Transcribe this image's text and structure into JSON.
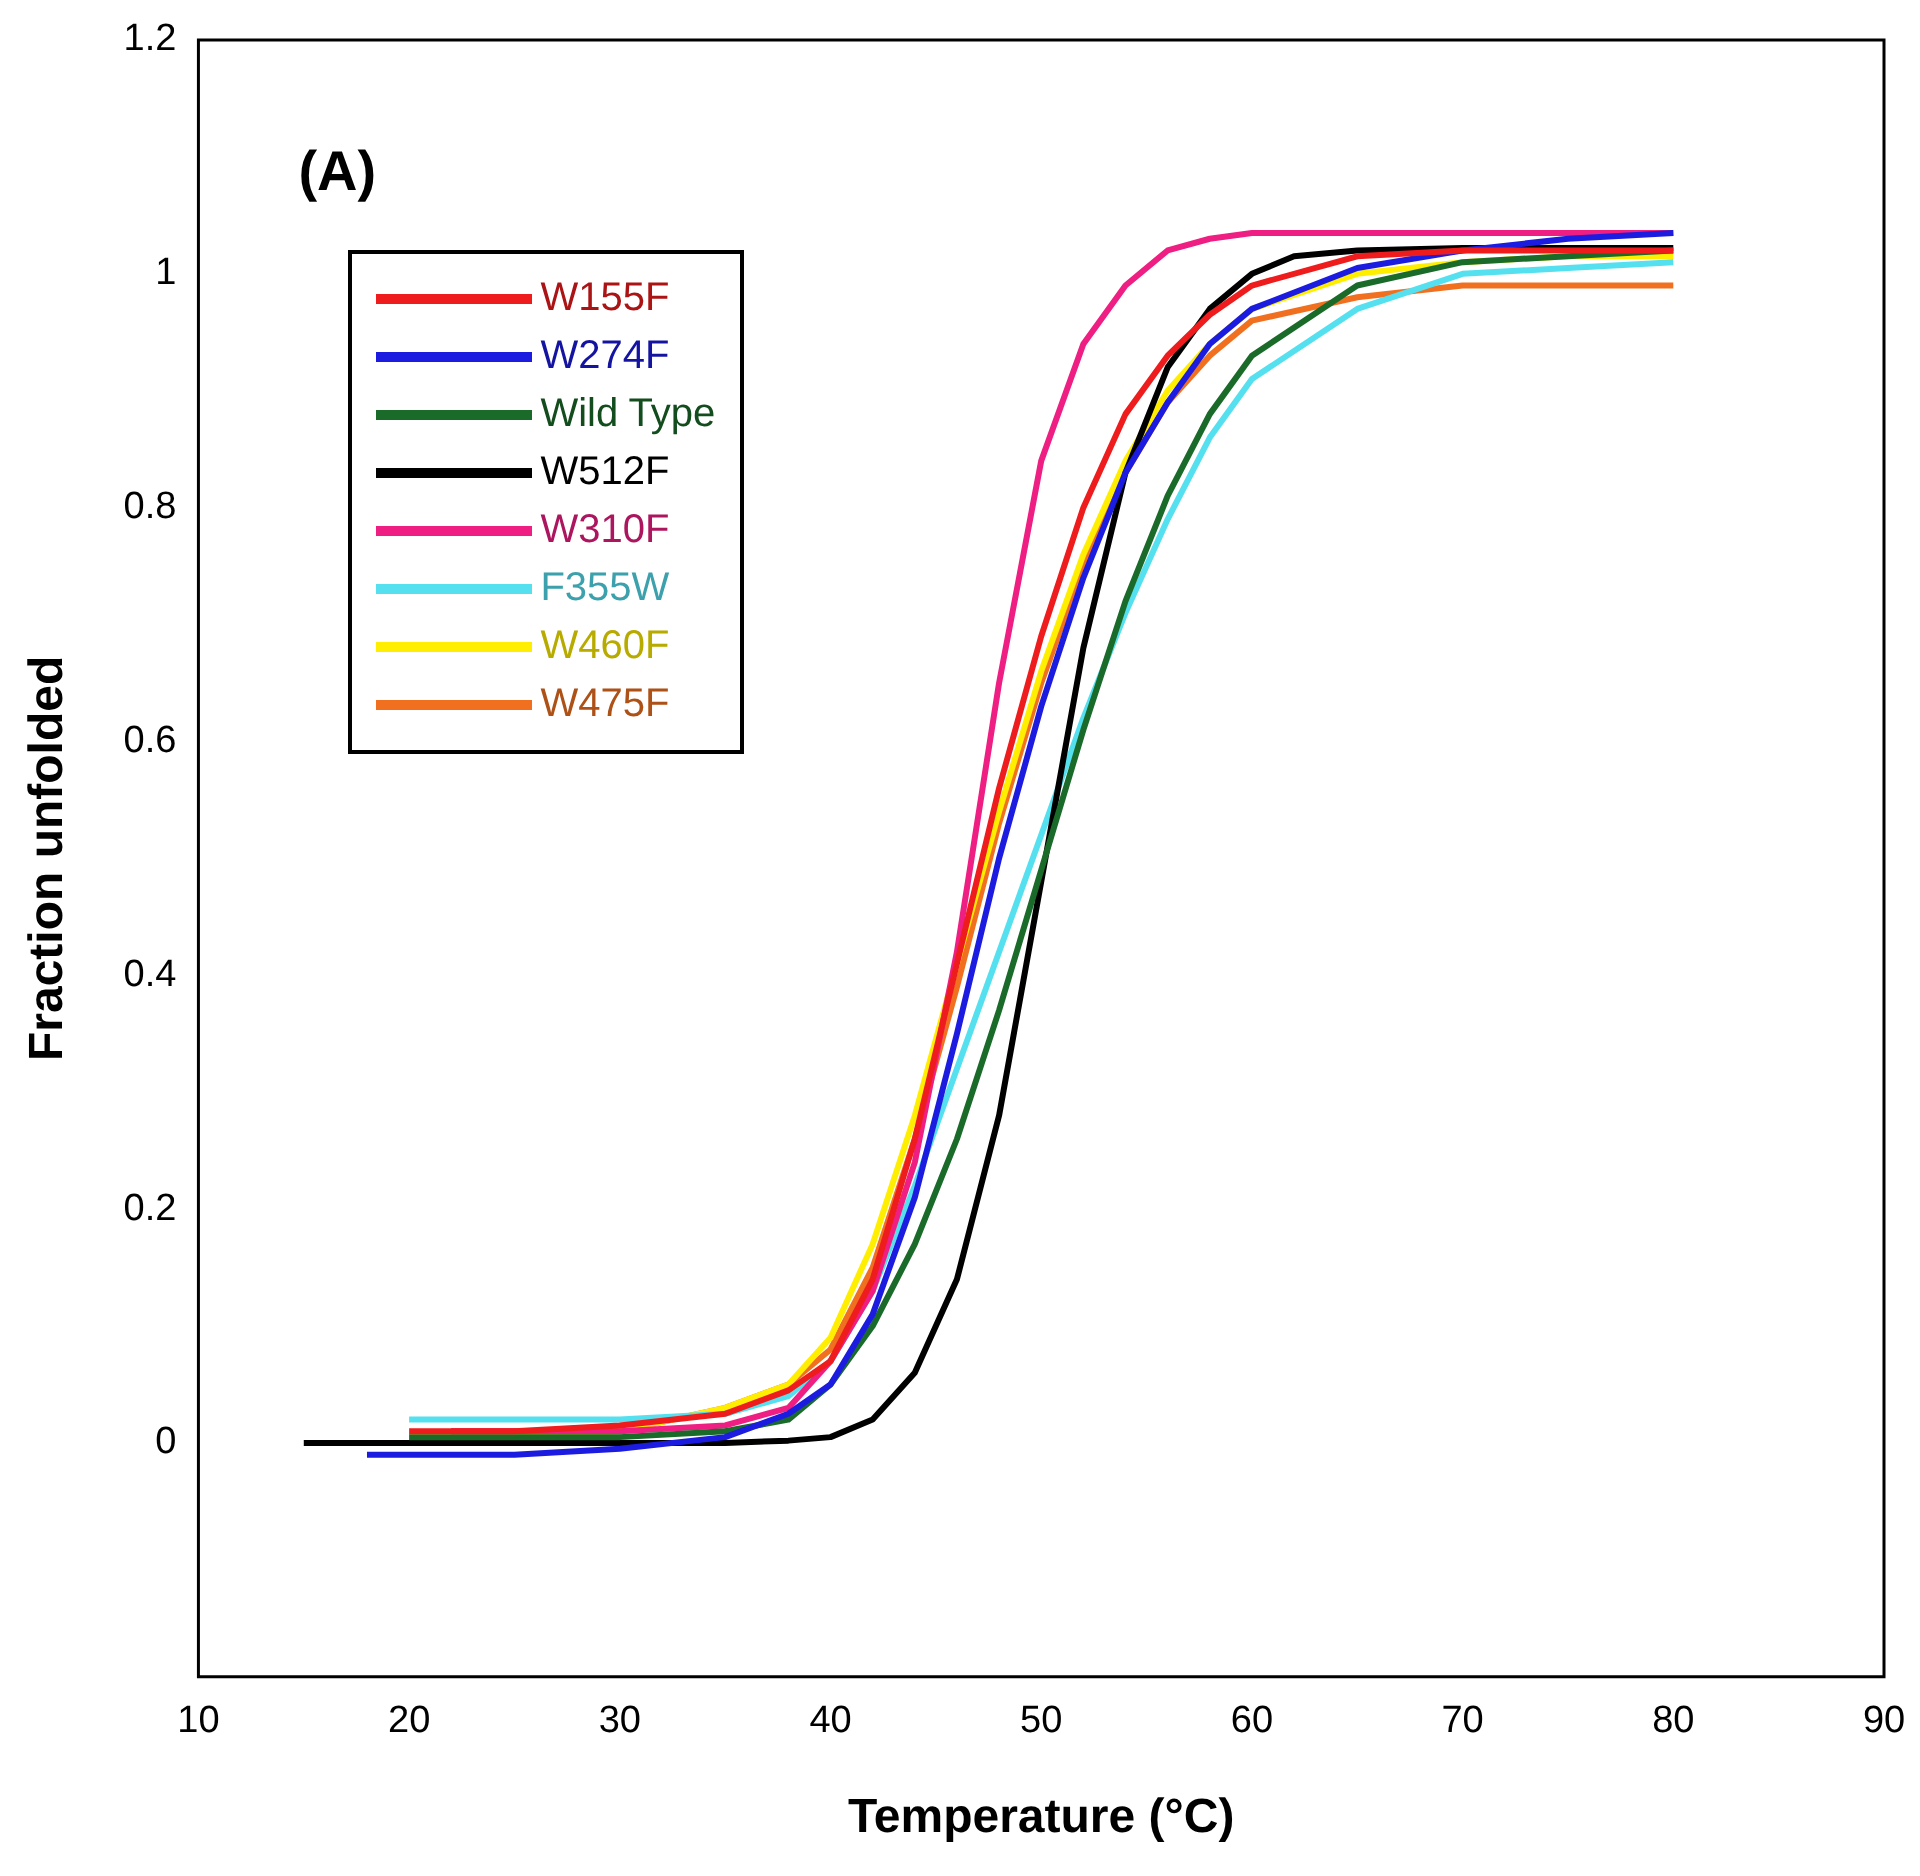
{
  "chart_data": {
    "type": "line",
    "xlabel": "Temperature (°C)",
    "ylabel": "Fraction unfolded",
    "annotations": [
      "(A)"
    ],
    "x": [
      20,
      25,
      30,
      35,
      38,
      40,
      42,
      44,
      46,
      48,
      50,
      52,
      54,
      56,
      58,
      60,
      65,
      70,
      75,
      80
    ],
    "xlim": [
      10,
      90
    ],
    "xticks": [
      10,
      20,
      30,
      40,
      50,
      60,
      70,
      80,
      90
    ],
    "ylim": [
      -0.2,
      1.2
    ],
    "yticks": [
      0,
      0.2,
      0.4,
      0.6,
      0.8,
      1,
      1.2
    ],
    "grid": false,
    "legend": "top left",
    "marker": "none",
    "line_style": "solid",
    "series": [
      {
        "name": "W155F",
        "color": "#ee1c1c",
        "values": [
          0.01,
          0.01,
          0.015,
          0.025,
          0.045,
          0.07,
          0.14,
          0.26,
          0.41,
          0.56,
          0.69,
          0.8,
          0.88,
          0.93,
          0.965,
          0.99,
          1.015,
          1.02,
          1.02,
          1.02
        ]
      },
      {
        "name": "W274F",
        "color": "#1c1ce0",
        "x": [
          18,
          20,
          25,
          30,
          35,
          38,
          40,
          42,
          44,
          46,
          48,
          50,
          52,
          54,
          56,
          58,
          60,
          65,
          70,
          75,
          80
        ],
        "values": [
          -0.01,
          -0.01,
          -0.01,
          -0.005,
          0.005,
          0.025,
          0.05,
          0.11,
          0.21,
          0.35,
          0.5,
          0.63,
          0.74,
          0.83,
          0.89,
          0.94,
          0.97,
          1.005,
          1.02,
          1.03,
          1.035
        ]
      },
      {
        "name": "Wild Type",
        "color": "#1a6b2a",
        "values": [
          0.005,
          0.005,
          0.005,
          0.01,
          0.02,
          0.05,
          0.1,
          0.17,
          0.26,
          0.37,
          0.49,
          0.61,
          0.72,
          0.81,
          0.88,
          0.93,
          0.99,
          1.01,
          1.015,
          1.02
        ]
      },
      {
        "name": "W512F",
        "color": "#000000",
        "x": [
          15,
          20,
          25,
          30,
          35,
          38,
          40,
          42,
          44,
          46,
          48,
          50,
          52,
          54,
          56,
          58,
          60,
          62,
          65,
          70,
          75,
          80
        ],
        "values": [
          0,
          0,
          0,
          0,
          0,
          0.002,
          0.005,
          0.02,
          0.06,
          0.14,
          0.28,
          0.48,
          0.68,
          0.83,
          0.92,
          0.97,
          1,
          1.015,
          1.02,
          1.022,
          1.022,
          1.022
        ]
      },
      {
        "name": "W310F",
        "color": "#ee1e82",
        "x": [
          22,
          25,
          30,
          35,
          38,
          40,
          42,
          44,
          46,
          48,
          50,
          52,
          54,
          56,
          58,
          60,
          65,
          70,
          75,
          80
        ],
        "values": [
          0.01,
          0.01,
          0.01,
          0.015,
          0.03,
          0.07,
          0.13,
          0.24,
          0.42,
          0.65,
          0.84,
          0.94,
          0.99,
          1.02,
          1.03,
          1.035,
          1.035,
          1.035,
          1.035,
          1.035
        ]
      },
      {
        "name": "F355W",
        "color": "#55e0f0",
        "values": [
          0.02,
          0.02,
          0.02,
          0.025,
          0.04,
          0.07,
          0.13,
          0.22,
          0.32,
          0.42,
          0.52,
          0.62,
          0.71,
          0.79,
          0.86,
          0.91,
          0.97,
          1,
          1.005,
          1.01
        ]
      },
      {
        "name": "W460F",
        "color": "#ffee00",
        "values": [
          0.005,
          0.005,
          0.01,
          0.03,
          0.05,
          0.09,
          0.17,
          0.28,
          0.41,
          0.54,
          0.66,
          0.76,
          0.84,
          0.9,
          0.94,
          0.97,
          1,
          1.01,
          1.015,
          1.015
        ]
      },
      {
        "name": "W475F",
        "color": "#f07020",
        "x": [
          22,
          25,
          30,
          35,
          38,
          40,
          42,
          44,
          46,
          48,
          50,
          52,
          54,
          56,
          58,
          60,
          65,
          70,
          75,
          80
        ],
        "values": [
          0.01,
          0.01,
          0.01,
          0.03,
          0.05,
          0.08,
          0.15,
          0.26,
          0.39,
          0.53,
          0.65,
          0.75,
          0.83,
          0.89,
          0.93,
          0.96,
          0.98,
          0.99,
          0.99,
          0.99
        ]
      }
    ]
  }
}
